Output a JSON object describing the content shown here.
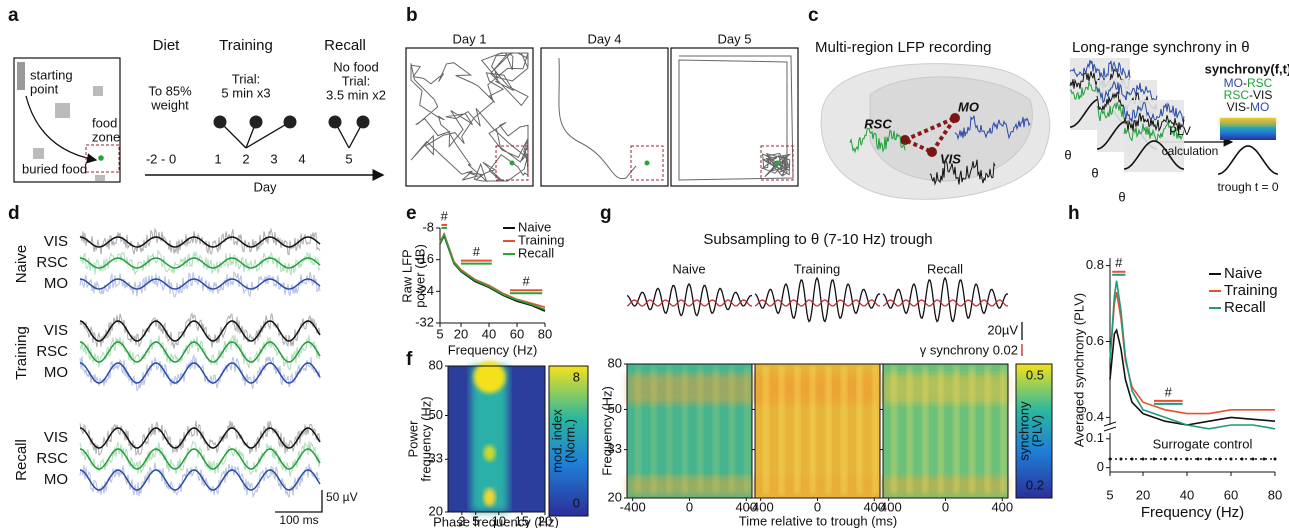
{
  "panel_labels": [
    "a",
    "b",
    "c",
    "d",
    "e",
    "f",
    "g",
    "h"
  ],
  "panel_a": {
    "starting_point": [
      "starting",
      "point"
    ],
    "buried_food": "buried food",
    "food_zone": [
      "food",
      "zone"
    ],
    "phases": [
      {
        "title": "Diet",
        "note": [
          "To 85%",
          "weight"
        ]
      },
      {
        "title": "Training",
        "note": [
          "Trial:",
          "5 min x3"
        ]
      },
      {
        "title": "Recall",
        "note": [
          "No food",
          "Trial:",
          "3.5 min x2"
        ]
      }
    ],
    "day_ticks": [
      "-2 - 0",
      "1",
      "2",
      "3",
      "4",
      "5"
    ],
    "axis_label": "Day"
  },
  "panel_b": {
    "days": [
      "Day 1",
      "Day 4",
      "Day 5"
    ]
  },
  "panel_c": {
    "left_title": "Multi-region LFP recording",
    "right_title": "Long-range synchrony in θ",
    "regions": [
      {
        "name": "RSC",
        "color": "#1f9e3a"
      },
      {
        "name": "MO",
        "color": "#2a4aa8"
      },
      {
        "name": "VIS",
        "color": "#111111"
      }
    ],
    "theta": [
      "θ",
      "θ",
      "θ"
    ],
    "plv": [
      "PLV",
      "calculation"
    ],
    "matrix_title": "synchrony(f,t)",
    "pairs": [
      [
        "MO",
        "-",
        "RSC"
      ],
      [
        "RSC",
        "-",
        "VIS"
      ],
      [
        "VIS",
        "-",
        "MO"
      ]
    ],
    "trough": "trough t = 0"
  },
  "panel_d": {
    "conditions": [
      "Naive",
      "Training",
      "Recall"
    ],
    "channels": [
      "VIS",
      "RSC",
      "MO"
    ],
    "amplitude_scale": "50 µV",
    "time_scale": "100 ms"
  },
  "panel_f": {
    "ylabel": [
      "Power",
      "frequency (Hz)"
    ],
    "xlabel": "Phase frequency (Hz)",
    "xlim": [
      -1,
      20
    ],
    "xticks": [
      2,
      5,
      10,
      15,
      20
    ],
    "ylim": [
      20,
      80
    ],
    "yticks": [
      20,
      33,
      50,
      80
    ],
    "log_y": true,
    "colorbar": {
      "label": [
        "mod. index",
        "(Norm.)"
      ],
      "lim": [
        0,
        8
      ],
      "ticks": [
        0,
        8
      ]
    }
  },
  "panel_g": {
    "title": "Subsampling to θ (7-10 Hz) trough",
    "conditions": [
      "Naive",
      "Training",
      "Recall"
    ],
    "amplitude_scale": "20µV",
    "synchrony_scale": "γ synchrony 0.02",
    "ylabel": "Frequency (Hz)",
    "xlabel": "Time relative to trough (ms)",
    "xlim": [
      -440,
      440
    ],
    "xticks": [
      -400,
      0,
      400
    ],
    "ylim": [
      20,
      80
    ],
    "yticks": [
      20,
      33,
      50,
      80
    ],
    "log_y": true,
    "colorbar": {
      "label": [
        "synchrony",
        "(PLV)"
      ],
      "lim": [
        0.2,
        0.5
      ],
      "ticks": [
        0.2,
        0.5
      ]
    }
  },
  "chart_data": [
    {
      "type": "line",
      "ylabel": [
        "Raw LFP",
        "power (dB)"
      ],
      "xlabel": "Frequency (Hz)",
      "x": [
        5,
        8,
        10,
        15,
        20,
        30,
        40,
        50,
        60,
        70,
        80
      ],
      "xlim": [
        5,
        80
      ],
      "xticks": [
        5,
        20,
        40,
        60,
        80
      ],
      "ylim": [
        -32,
        -8
      ],
      "yticks": [
        -8,
        -16,
        -24,
        -32
      ],
      "legend": "upper right",
      "series": [
        {
          "name": "Naive",
          "color": "#111111",
          "values": [
            -12,
            -10,
            -12,
            -17,
            -19,
            -21.5,
            -23,
            -25,
            -26.5,
            -27.5,
            -29
          ]
        },
        {
          "name": "Training",
          "color": "#e8502f",
          "values": [
            -11.5,
            -9.5,
            -11.5,
            -16.5,
            -18.5,
            -21,
            -22.5,
            -24.5,
            -26,
            -27,
            -28
          ]
        },
        {
          "name": "Recall",
          "color": "#2aa33a",
          "values": [
            -11.8,
            -9.7,
            -11.7,
            -16.8,
            -18.8,
            -21.2,
            -22.8,
            -24.8,
            -26.2,
            -27.3,
            -28.6
          ]
        }
      ],
      "annotations": [
        {
          "text": "#",
          "x": [
            6,
            10
          ]
        },
        {
          "text": "#",
          "x": [
            20,
            42
          ]
        },
        {
          "text": "#",
          "x": [
            55,
            78
          ]
        }
      ]
    },
    {
      "type": "line",
      "ylabel": "Averaged synchrony (PLV)",
      "x": [
        5,
        7,
        8,
        10,
        12,
        15,
        20,
        30,
        40,
        50,
        60,
        70,
        80
      ],
      "xlim": [
        5,
        80
      ],
      "ylim": [
        0.38,
        0.82
      ],
      "yticks": [
        0.4,
        0.6,
        0.8
      ],
      "legend": "upper right",
      "series": [
        {
          "name": "Naive",
          "color": "#111111",
          "values": [
            0.5,
            0.62,
            0.63,
            0.58,
            0.5,
            0.44,
            0.41,
            0.39,
            0.38,
            0.39,
            0.4,
            0.395,
            0.39
          ]
        },
        {
          "name": "Training",
          "color": "#e8502f",
          "values": [
            0.55,
            0.7,
            0.73,
            0.66,
            0.55,
            0.48,
            0.44,
            0.42,
            0.41,
            0.41,
            0.42,
            0.42,
            0.42
          ]
        },
        {
          "name": "Recall",
          "color": "#1f9a7a",
          "values": [
            0.55,
            0.72,
            0.76,
            0.68,
            0.56,
            0.47,
            0.42,
            0.4,
            0.38,
            0.37,
            0.38,
            0.38,
            0.37
          ]
        }
      ],
      "annotations": [
        {
          "text": "#",
          "x": [
            6,
            12
          ]
        },
        {
          "text": "#",
          "x": [
            25,
            38
          ]
        }
      ]
    },
    {
      "type": "line",
      "title": "Surrogate control",
      "xlabel": "Frequency (Hz)",
      "x": [
        5,
        10,
        15,
        20,
        25,
        30,
        35,
        40,
        45,
        50,
        55,
        60,
        65,
        70,
        75,
        80
      ],
      "xlim": [
        5,
        80
      ],
      "xticks": [
        5,
        20,
        40,
        60,
        80
      ],
      "ylim": [
        -0.015,
        0.12
      ],
      "yticks": [
        0,
        0.1
      ],
      "color": "#111111",
      "values": [
        0.03,
        0.03,
        0.03,
        0.03,
        0.03,
        0.03,
        0.03,
        0.03,
        0.03,
        0.03,
        0.03,
        0.03,
        0.03,
        0.03,
        0.03,
        0.03
      ]
    }
  ]
}
